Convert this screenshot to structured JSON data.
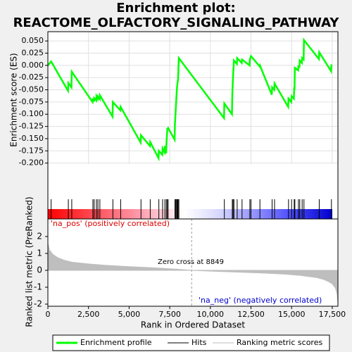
{
  "chart_data": [
    {
      "type": "line",
      "title": [
        "Enrichment plot:",
        "REACTOME_OLFACTORY_SIGNALING_PATHWAY"
      ],
      "ylabel": "Enrichment score (ES)",
      "ylim": [
        -0.202,
        0.069
      ],
      "yticks": [
        {
          "value": 0.05,
          "label": "0.050"
        },
        {
          "value": 0.025,
          "label": "0.025"
        },
        {
          "value": 0,
          "label": "0.000"
        },
        {
          "value": -0.025,
          "label": "-0.025"
        },
        {
          "value": -0.05,
          "label": "-0.050"
        },
        {
          "value": -0.075,
          "label": "-0.075"
        },
        {
          "value": -0.1,
          "label": "-0.100"
        },
        {
          "value": -0.125,
          "label": "-0.125"
        },
        {
          "value": -0.15,
          "label": "-0.150"
        },
        {
          "value": -0.175,
          "label": "-0.175"
        },
        {
          "value": -0.2,
          "label": "-0.200"
        }
      ],
      "x": [
        0,
        200,
        1240,
        1260,
        1450,
        1470,
        2750,
        2770,
        2840,
        2850,
        2980,
        2990,
        3070,
        3080,
        3190,
        3200,
        3980,
        4000,
        4460,
        4480,
        5710,
        5730,
        6280,
        6300,
        6810,
        6830,
        7040,
        7060,
        7180,
        7200,
        7280,
        7290,
        7350,
        7400,
        7800,
        7820,
        7870,
        7920,
        7950,
        7980,
        8010,
        8060,
        10840,
        10860,
        11330,
        11350,
        11400,
        11450,
        11630,
        11650,
        11930,
        11950,
        12410,
        12430,
        12500,
        13030,
        13050,
        13780,
        13800,
        13930,
        13950,
        14790,
        14810,
        14980,
        15000,
        15140,
        15160,
        15180,
        15200,
        15400,
        15420,
        15480,
        15500,
        15630,
        15650,
        15740,
        15760,
        16680,
        16700,
        17430,
        17450
      ],
      "series": [
        {
          "name": "Enrichment profile",
          "color": "#00ff00",
          "values": [
            0,
            0.008,
            -0.052,
            -0.036,
            -0.045,
            -0.013,
            -0.075,
            -0.068,
            -0.074,
            -0.067,
            -0.072,
            -0.063,
            -0.068,
            -0.064,
            -0.069,
            -0.061,
            -0.105,
            -0.075,
            -0.092,
            -0.085,
            -0.158,
            -0.143,
            -0.165,
            -0.157,
            -0.19,
            -0.175,
            -0.183,
            -0.17,
            -0.178,
            -0.165,
            -0.18,
            -0.165,
            -0.13,
            -0.128,
            -0.152,
            -0.12,
            -0.09,
            -0.06,
            -0.045,
            -0.035,
            -0.03,
            0.015,
            -0.108,
            -0.078,
            -0.1,
            -0.06,
            -0.02,
            0.01,
            0.003,
            0.015,
            0.005,
            0.012,
            0.0,
            0.012,
            0.019,
            -0.002,
            0.0,
            -0.06,
            -0.045,
            -0.05,
            -0.037,
            -0.085,
            -0.068,
            -0.075,
            -0.063,
            -0.068,
            -0.045,
            -0.05,
            -0.005,
            -0.01,
            0.0,
            -0.005,
            0.01,
            0.005,
            0.015,
            0.012,
            0.052,
            0.013,
            0.027,
            -0.012,
            0.002
          ]
        }
      ]
    },
    {
      "type": "hits",
      "series": [
        {
          "name": "Hits",
          "color": "#000000",
          "x": [
            200,
            1260,
            1470,
            2770,
            2850,
            2990,
            3080,
            3200,
            4000,
            4480,
            5730,
            6300,
            6830,
            7060,
            7200,
            7290,
            7350,
            7400,
            7820,
            7870,
            7920,
            7950,
            7980,
            8010,
            8060,
            10860,
            11350,
            11400,
            11450,
            11650,
            11950,
            12430,
            12500,
            13050,
            13800,
            13950,
            14810,
            15000,
            15160,
            15200,
            15420,
            15500,
            15650,
            15760,
            16700,
            17450
          ]
        }
      ]
    },
    {
      "type": "area",
      "ylabel": "Ranked list metric (PreRanked)",
      "xlabel": "Rank in Ordered Dataset",
      "xlim": [
        0,
        17850
      ],
      "xticks": [
        0,
        {
          "value": 2500,
          "label": "2,500"
        },
        {
          "value": 5000,
          "label": "5,000"
        },
        {
          "value": 7500,
          "label": "7,500"
        },
        {
          "value": 10000,
          "label": "10,000"
        },
        {
          "value": 12500,
          "label": "12,500"
        },
        {
          "value": 15000,
          "label": "15,000"
        },
        {
          "value": 17500,
          "label": "17,500"
        }
      ],
      "ylim": [
        -2.125,
        3.04
      ],
      "yticks": [
        2,
        1,
        0,
        -1,
        -2
      ],
      "zero_cross": 8849,
      "annotations": [
        "'na_pos' (positively correlated)",
        "Zero cross at 8849",
        "'na_neg' (negatively correlated)"
      ],
      "x": [
        0,
        100,
        300,
        600,
        1000,
        1500,
        2500,
        3500,
        5000,
        6500,
        8000,
        8849,
        10000,
        11500,
        13000,
        14500,
        15500,
        16500,
        17000,
        17300,
        17500,
        17700,
        17800,
        17850
      ],
      "series": [
        {
          "name": "Ranking metric scores",
          "color": "#bebebe",
          "values": [
            1.6,
            1.2,
            0.95,
            0.75,
            0.6,
            0.48,
            0.38,
            0.3,
            0.22,
            0.15,
            0.06,
            0,
            -0.05,
            -0.1,
            -0.15,
            -0.22,
            -0.3,
            -0.42,
            -0.55,
            -0.68,
            -0.8,
            -1.05,
            -1.4,
            -1.9
          ]
        }
      ]
    }
  ]
}
